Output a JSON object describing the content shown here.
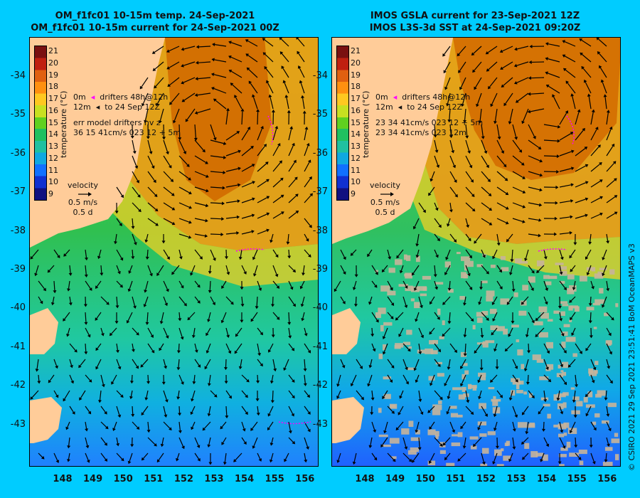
{
  "left": {
    "title_line1": "OM_f1fc01 10-15m temp. 24-Sep-2021",
    "title_line2": "OM_f1fc01 10-15m current for 24-Sep-2021 00Z",
    "legend_drifter": "drifters 48h@12h",
    "legend_drifter_to": "to 24 Sep 12Z",
    "legend_depth_a": "0m",
    "legend_depth_b": "12m",
    "err_title": "err model drifters nv z",
    "err_line1": "36 15 41cm/s 023 12 + 5m",
    "velocity_label": "velocity",
    "velocity_speed": "0.5 m/s",
    "velocity_time": "0.5 d"
  },
  "right": {
    "title_line1": "IMOS GSLA current for 23-Sep-2021 12Z",
    "title_line2": "IMOS L3S-3d SST at 24-Sep-2021 09:20Z",
    "legend_drifter": "drifters 48h@12h",
    "legend_drifter_to": "to 24 Sep 12Z",
    "legend_depth_a": "0m",
    "legend_depth_b": "12m",
    "err_line1": "23 34 41cm/s 023 12 + 5m",
    "err_line2": "23 34 41cm/s 023 12m",
    "velocity_label": "velocity",
    "velocity_speed": "0.5 m/s",
    "velocity_time": "0.5 d"
  },
  "colorbar": {
    "title": "temperature (°C)",
    "ticks": [
      "21",
      "20",
      "19",
      "18",
      "17",
      "16",
      "15",
      "14",
      "13",
      "12",
      "11",
      "10",
      "9"
    ]
  },
  "lat_ticks": [
    "-34",
    "-35",
    "-36",
    "-37",
    "-38",
    "-39",
    "-40",
    "-41",
    "-42",
    "-43"
  ],
  "lon_ticks": [
    "148",
    "149",
    "150",
    "151",
    "152",
    "153",
    "154",
    "155",
    "156"
  ],
  "copyright": "© CSIRO 2021   29 Sep 2021 23:51:41 BoM OceanMAPS v3",
  "colors": {
    "background": "#00ccff",
    "land": "#ffcc99",
    "missing": "#c8b49a",
    "drifter": "#ff00ff"
  }
}
